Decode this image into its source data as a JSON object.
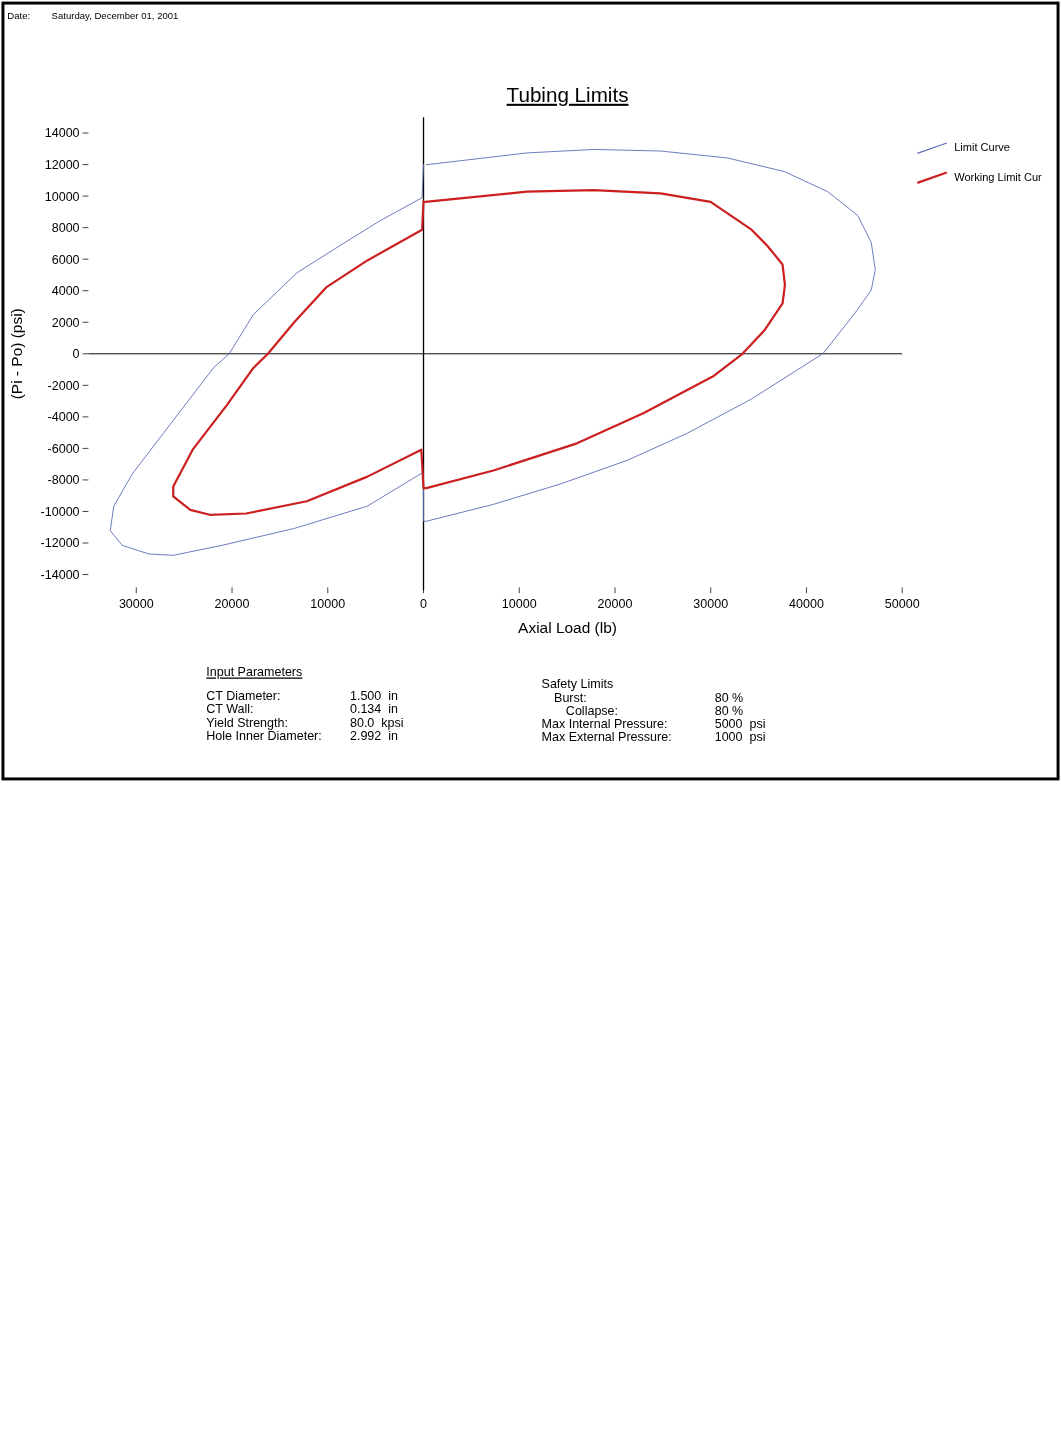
{
  "chart_data": {
    "type": "line",
    "title": "Tubing Limits",
    "xlabel": "Axial Load (lb)",
    "ylabel": "(Pi - Po) (psi)",
    "xlim": [
      -35000,
      50000
    ],
    "ylim": [
      -15000,
      15000
    ],
    "xticks": [
      {
        "value": -30000,
        "label": "30000"
      },
      {
        "value": -20000,
        "label": "20000"
      },
      {
        "value": -10000,
        "label": "10000"
      },
      0,
      10000,
      20000,
      30000,
      40000,
      50000
    ],
    "yticks": [
      -14000,
      -12000,
      -10000,
      -8000,
      -6000,
      -4000,
      -2000,
      0,
      2000,
      4000,
      6000,
      8000,
      10000,
      12000,
      14000
    ],
    "grid": false,
    "ref_lines": [
      {
        "axis": "x",
        "value": 0,
        "color": "#000000"
      },
      {
        "axis": "y",
        "value": 0,
        "color": "#000000"
      }
    ],
    "legend": "top right",
    "marker": "none",
    "line_style": "solid",
    "series": [
      {
        "name": "Limit Curve",
        "color": "#5a6cb4",
        "x": [
          300,
          10800,
          17800,
          24750,
          31740,
          37680,
          42220,
          45360,
          46770,
          47180,
          46770,
          45020,
          41700,
          34190,
          27550,
          21270,
          14280,
          7300,
          300,
          0,
          0,
          -150,
          -5860,
          -13460,
          -21060,
          -26140,
          -28670,
          -31460,
          -32720,
          -32350,
          -30440,
          -26900,
          -21950,
          -20300,
          -17770,
          -13210,
          -9150,
          -4590,
          -150,
          0
        ],
        "values": [
          11990,
          12740,
          12960,
          12860,
          12420,
          11560,
          10280,
          8770,
          7050,
          5330,
          4040,
          2540,
          0,
          -2890,
          -5040,
          -6760,
          -8260,
          -9550,
          -10620,
          -10620,
          -7620,
          -7560,
          -9660,
          -11070,
          -12150,
          -12780,
          -12700,
          -12150,
          -11220,
          -9660,
          -7640,
          -4830,
          -900,
          0,
          2490,
          5140,
          6700,
          8420,
          9900,
          12000
        ]
      },
      {
        "name": "Working Limit Cur",
        "color": "#cc2020",
        "x": [
          200,
          10780,
          17770,
          24750,
          29990,
          34180,
          35930,
          37500,
          37750,
          37500,
          35590,
          33310,
          30350,
          23010,
          16030,
          7300,
          300,
          0,
          -230,
          -5860,
          -12190,
          -18530,
          -22330,
          -24360,
          -26140,
          -26140,
          -24110,
          -20560,
          -17770,
          -16250,
          -13460,
          -10170,
          -5860,
          -150,
          0
        ],
        "values": [
          9630,
          10280,
          10380,
          10170,
          9630,
          7910,
          6840,
          5660,
          4370,
          3190,
          1470,
          0,
          -1390,
          -3750,
          -5680,
          -7400,
          -8520,
          -8520,
          -6080,
          -7790,
          -9350,
          -10130,
          -10210,
          -9900,
          -9040,
          -8420,
          -6080,
          -3270,
          -900,
          0,
          2030,
          4210,
          5920,
          7870,
          9660
        ]
      }
    ],
    "annotations": [
      "Date:",
      "Saturday, December 01, 2001",
      "Input Parameters",
      "CT Diameter:",
      "1.500  in",
      "CT Wall:",
      "0.134  in",
      "Yield Strength:",
      "80.0  kpsi",
      "Hole Inner Diameter:",
      "2.992  in",
      "Safety Limits",
      "Burst:",
      "80 %",
      "Collapse:",
      "80 %",
      "Max Internal Pressure:",
      "5000  psi",
      "Max External Pressure:",
      "1000  psi"
    ]
  }
}
